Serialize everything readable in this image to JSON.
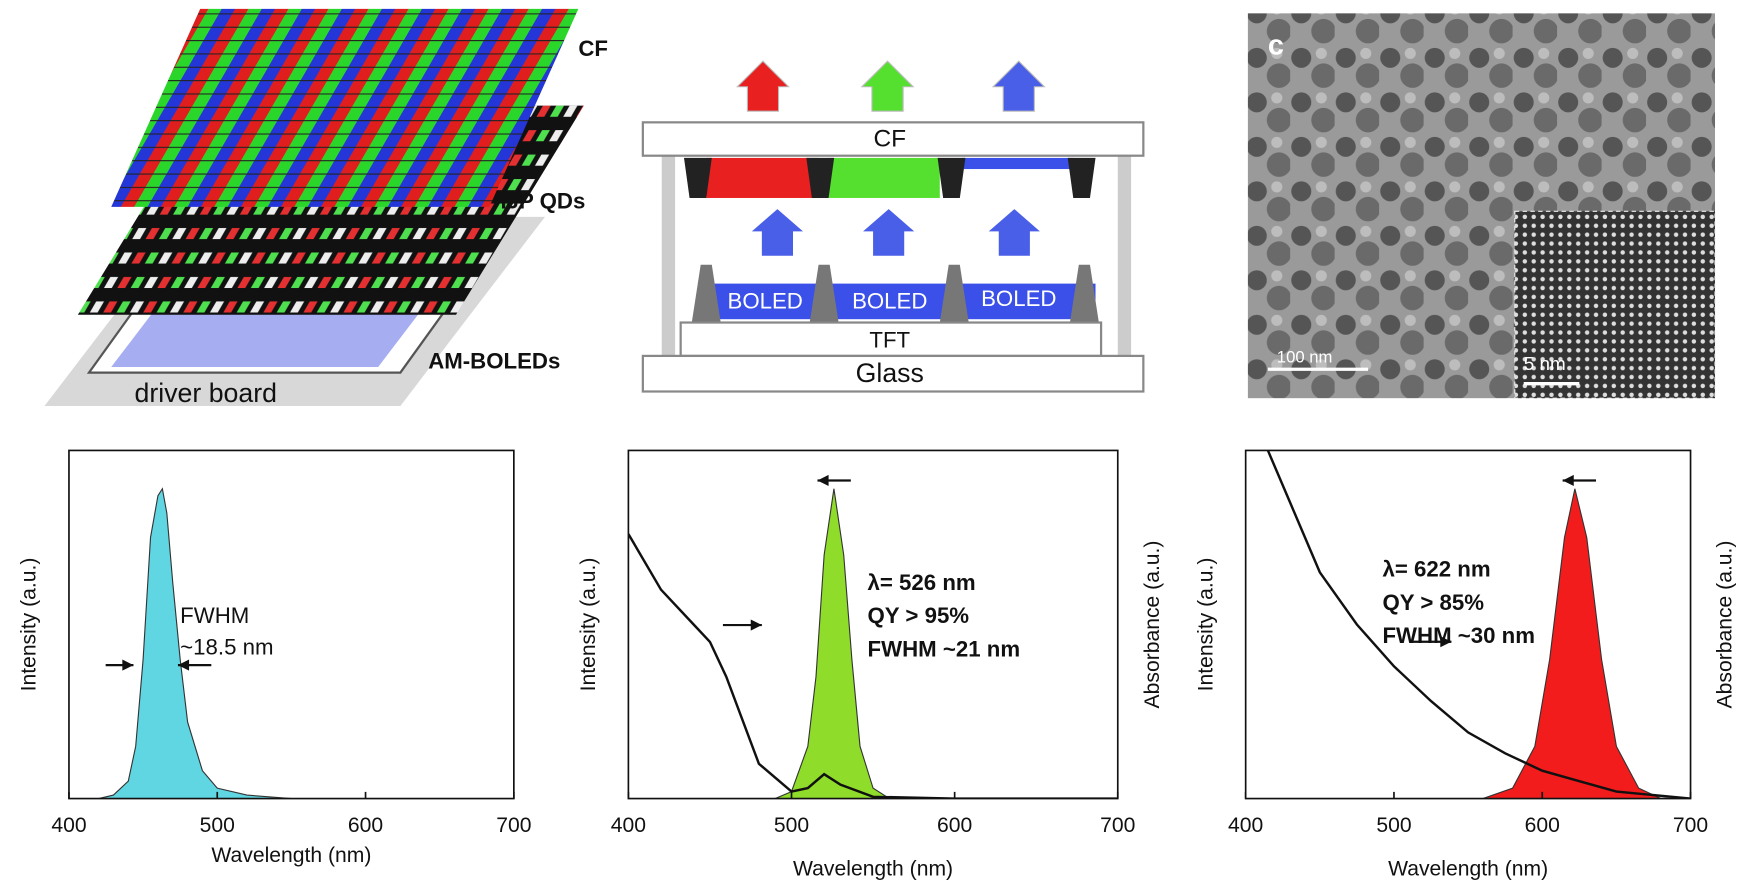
{
  "figure": {
    "panel_a": {
      "labels": [
        "CF",
        "IJP QDs",
        "AM-BOLEDs",
        "driver board"
      ]
    },
    "panel_b": {
      "cf": "CF",
      "boled": [
        "BOLED",
        "BOLED",
        "BOLED"
      ],
      "tft": "TFT",
      "glass": "Glass"
    },
    "panel_c": {
      "label": "c",
      "scale_bars": [
        "100 nm",
        "5 nm"
      ]
    }
  },
  "chart_data": [
    {
      "type": "line",
      "x_label": "Wavelength (nm)",
      "y_label": "Intensity (a.u.)",
      "xlim": [
        400,
        700
      ],
      "xticks": [
        400,
        500,
        600,
        700
      ],
      "ylim": [
        0,
        1
      ],
      "series": [
        {
          "color": "#5fd6e2",
          "style": "area",
          "x": [
            400,
            420,
            430,
            440,
            445,
            450,
            455,
            460,
            463,
            466,
            470,
            475,
            480,
            490,
            500,
            520,
            550,
            600,
            700
          ],
          "values": [
            0,
            0,
            0.01,
            0.05,
            0.15,
            0.4,
            0.75,
            0.87,
            0.89,
            0.82,
            0.62,
            0.4,
            0.22,
            0.08,
            0.03,
            0.01,
            0,
            0,
            0
          ]
        }
      ],
      "annotations": [
        "FWHM",
        "~18.5 nm"
      ]
    },
    {
      "type": "line",
      "x_label": "Wavelength (nm)",
      "y_label": "Intensity (a.u.)",
      "y2_label": "Absorbance (a.u.)",
      "xlim": [
        400,
        700
      ],
      "xticks": [
        400,
        500,
        600,
        700
      ],
      "ylim": [
        0,
        1
      ],
      "y2lim": [
        0,
        1
      ],
      "series": [
        {
          "color": "#8fdc2a",
          "style": "area",
          "x": [
            400,
            490,
            500,
            510,
            515,
            520,
            526,
            532,
            537,
            542,
            550,
            560,
            700
          ],
          "values": [
            0,
            0,
            0.02,
            0.15,
            0.35,
            0.7,
            0.89,
            0.7,
            0.4,
            0.15,
            0.03,
            0,
            0
          ]
        },
        {
          "color": "#111111",
          "style": "line",
          "axis": "y2",
          "x": [
            400,
            420,
            440,
            450,
            460,
            480,
            500,
            510,
            520,
            530,
            550,
            600,
            700
          ],
          "values": [
            0.76,
            0.6,
            0.5,
            0.45,
            0.35,
            0.1,
            0.02,
            0.03,
            0.07,
            0.04,
            0.005,
            0,
            0
          ]
        }
      ],
      "annotations": [
        "λ= 526 nm",
        "QY > 95%",
        "FWHM ~21 nm"
      ]
    },
    {
      "type": "line",
      "x_label": "Wavelength (nm)",
      "y_label": "Intensity (a.u.)",
      "y2_label": "Absorbance (a.u.)",
      "xlim": [
        400,
        700
      ],
      "xticks": [
        400,
        500,
        600,
        700
      ],
      "ylim": [
        0,
        1
      ],
      "y2lim": [
        0,
        1
      ],
      "series": [
        {
          "color": "#f21c1c",
          "style": "area",
          "x": [
            400,
            560,
            580,
            595,
            605,
            615,
            622,
            630,
            640,
            650,
            665,
            680,
            700
          ],
          "values": [
            0,
            0,
            0.03,
            0.15,
            0.4,
            0.75,
            0.89,
            0.75,
            0.4,
            0.15,
            0.03,
            0,
            0
          ]
        },
        {
          "color": "#111111",
          "style": "line",
          "axis": "y2",
          "x": [
            415,
            430,
            450,
            475,
            500,
            525,
            550,
            575,
            600,
            625,
            650,
            700
          ],
          "values": [
            1,
            0.85,
            0.65,
            0.5,
            0.38,
            0.28,
            0.19,
            0.13,
            0.08,
            0.05,
            0.02,
            0
          ]
        }
      ],
      "annotations": [
        "λ= 622 nm",
        "QY > 85%",
        "FWHM ~30 nm"
      ]
    }
  ]
}
